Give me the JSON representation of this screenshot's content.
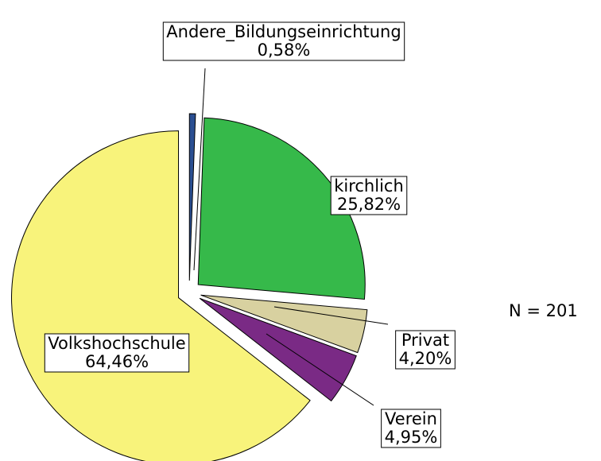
{
  "chart_data": {
    "type": "pie",
    "categories": [
      "Andere_Bildungseinrichtung",
      "kirchlich",
      "Privat",
      "Verein",
      "Volkshochschule"
    ],
    "values": [
      0.58,
      25.82,
      4.2,
      4.95,
      64.46
    ],
    "value_labels": [
      "0,58%",
      "25,82%",
      "4,20%",
      "4,95%",
      "64,46%"
    ],
    "colors": [
      "#2b4f92",
      "#36b94a",
      "#d8d1a0",
      "#7a2a85",
      "#f8f37b"
    ],
    "annotation": "N = 201"
  }
}
